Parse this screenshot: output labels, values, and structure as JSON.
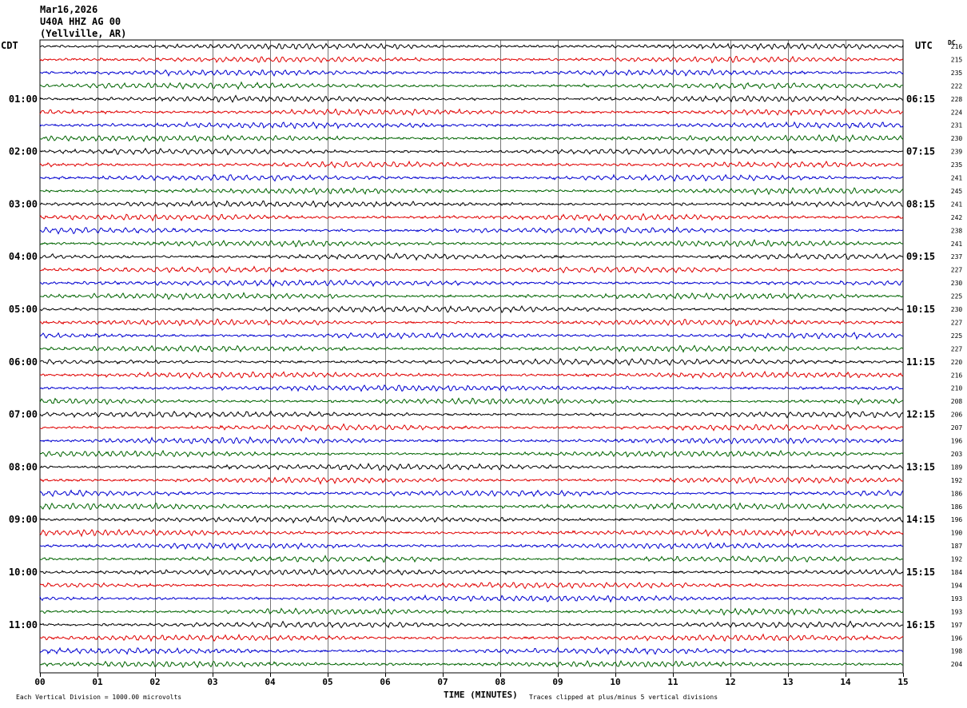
{
  "header": {
    "date": "Mar16,2026",
    "station": "U40A HHZ AG 00",
    "location": "(Yellville, AR)"
  },
  "left_tz": "CDT",
  "right_tz": "UTC",
  "dc_label": "DC",
  "colors": [
    "#000000",
    "#e00000",
    "#0000d0",
    "#006400"
  ],
  "chart_data": {
    "type": "line",
    "title": "",
    "xlabel": "TIME (MINUTES)",
    "ylabel": "",
    "xlim": [
      0,
      15
    ],
    "x_ticks": [
      "00",
      "01",
      "02",
      "03",
      "04",
      "05",
      "06",
      "07",
      "08",
      "09",
      "10",
      "11",
      "12",
      "13",
      "14",
      "15"
    ],
    "rows_per_hour": 4,
    "left_hour_labels": [
      "01:00",
      "02:00",
      "03:00",
      "04:00",
      "05:00",
      "06:00",
      "07:00",
      "08:00",
      "09:00",
      "10:00",
      "11:00"
    ],
    "right_hour_labels": [
      "06:15",
      "07:15",
      "08:15",
      "09:15",
      "10:15",
      "11:15",
      "12:15",
      "13:15",
      "14:15",
      "15:15",
      "16:15"
    ],
    "dc_offsets": [
      216,
      215,
      235,
      222,
      228,
      224,
      231,
      230,
      239,
      235,
      241,
      245,
      241,
      242,
      238,
      241,
      237,
      227,
      230,
      225,
      230,
      227,
      225,
      227,
      220,
      216,
      210,
      208,
      206,
      207,
      196,
      203,
      189,
      192,
      186,
      186,
      196,
      190,
      187,
      192,
      184,
      194,
      193,
      193,
      197,
      196,
      198,
      204
    ],
    "grid": true
  },
  "footer": {
    "scale": "Each Vertical Division = 1000.00 microvolts",
    "clip": "Traces clipped at plus/minus 5 vertical divisions"
  }
}
